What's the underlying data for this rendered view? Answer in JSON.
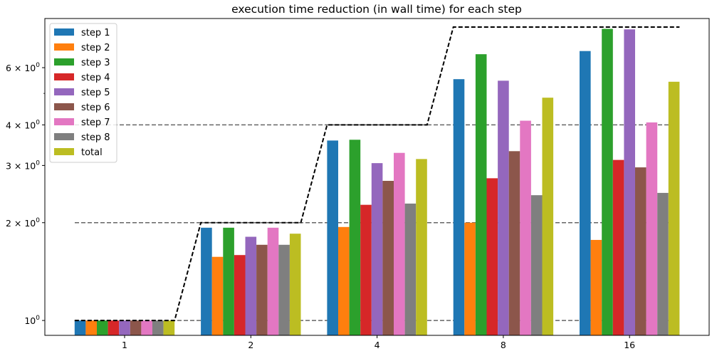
{
  "chart_data": {
    "type": "bar",
    "title": "execution time reduction (in wall time) for each step",
    "xlabel": "",
    "ylabel": "",
    "yscale": "log",
    "ylim": [
      0.9,
      8.5
    ],
    "categories": [
      "1",
      "2",
      "4",
      "8",
      "16"
    ],
    "y_ticks": [
      {
        "value": 1,
        "base": "10",
        "exp": "0",
        "mant": ""
      },
      {
        "value": 2,
        "base": "10",
        "exp": "0",
        "mant": "2 × "
      },
      {
        "value": 3,
        "base": "10",
        "exp": "0",
        "mant": "3 × "
      },
      {
        "value": 4,
        "base": "10",
        "exp": "0",
        "mant": "4 × "
      },
      {
        "value": 6,
        "base": "10",
        "exp": "0",
        "mant": "6 × "
      }
    ],
    "y_minor_ticks": [
      5
    ],
    "series": [
      {
        "name": "step 1",
        "color": "#1f77b4",
        "values": [
          1.0,
          1.93,
          3.58,
          5.53,
          6.75
        ]
      },
      {
        "name": "step 2",
        "color": "#ff7f0e",
        "values": [
          1.0,
          1.57,
          1.94,
          2.0,
          1.77
        ]
      },
      {
        "name": "step 3",
        "color": "#2ca02c",
        "values": [
          1.0,
          1.93,
          3.6,
          6.6,
          7.9
        ]
      },
      {
        "name": "step 4",
        "color": "#d62728",
        "values": [
          1.0,
          1.59,
          2.27,
          2.74,
          3.12
        ]
      },
      {
        "name": "step 5",
        "color": "#9467bd",
        "values": [
          1.0,
          1.81,
          3.05,
          5.47,
          7.87
        ]
      },
      {
        "name": "step 6",
        "color": "#8c564b",
        "values": [
          1.0,
          1.71,
          2.69,
          3.32,
          2.96
        ]
      },
      {
        "name": "step 7",
        "color": "#e377c2",
        "values": [
          1.0,
          1.93,
          3.28,
          4.12,
          4.07
        ]
      },
      {
        "name": "step 8",
        "color": "#7f7f7f",
        "values": [
          1.0,
          1.71,
          2.29,
          2.43,
          2.47
        ]
      },
      {
        "name": "total",
        "color": "#bcbd22",
        "values": [
          1.0,
          1.85,
          3.14,
          4.85,
          5.43
        ]
      }
    ],
    "ideal_line": {
      "values": [
        1,
        2,
        4,
        8,
        16
      ],
      "cap": 8,
      "color": "#000000",
      "style": "dashed"
    },
    "reference_lines": {
      "values": [
        1,
        2,
        4
      ],
      "color": "#666666",
      "style": "dashed"
    },
    "grid": false,
    "legend_position": "top-left"
  }
}
